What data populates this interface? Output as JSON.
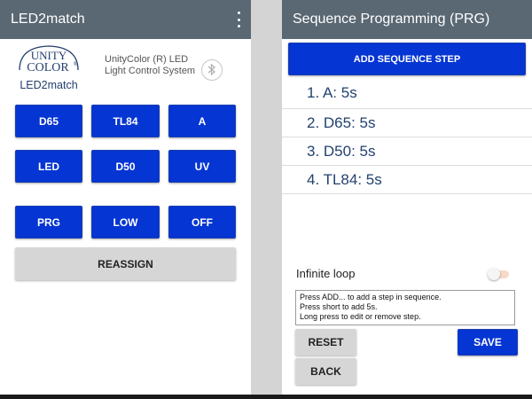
{
  "left_app": {
    "title": "LED2match",
    "logo": {
      "line1": "UNITY",
      "line2": "COLOR",
      "reg": "®",
      "line3": "LED2match"
    },
    "subtitle": "UnityColor (R) LED Light Control System",
    "buttons": [
      {
        "label": "D65"
      },
      {
        "label": "TL84"
      },
      {
        "label": "A"
      },
      {
        "label": "LED"
      },
      {
        "label": "D50"
      },
      {
        "label": "UV"
      },
      {
        "label": "PRG"
      },
      {
        "label": "LOW"
      },
      {
        "label": "OFF"
      }
    ],
    "reassign_label": "REASSIGN"
  },
  "right_app": {
    "title": "Sequence Programming (PRG)",
    "add_step_label": "ADD SEQUENCE STEP",
    "steps": [
      {
        "text": "1. A: 5s"
      },
      {
        "text": "2. D65: 5s"
      },
      {
        "text": "3. D50: 5s"
      },
      {
        "text": "4. TL84: 5s"
      }
    ],
    "infinite_loop_label": "Infinite loop",
    "infinite_loop_on": false,
    "help_lines": [
      "Press ADD... to add a step in sequence.",
      "Press short to add 5s.",
      "Long press to edit or remove step."
    ],
    "reset_label": "RESET",
    "save_label": "SAVE",
    "back_label": "BACK"
  },
  "colors": {
    "appbar": "#5a6873",
    "primary_button": "#0535d2",
    "secondary_button": "#d6d6d6",
    "step_text": "#22426e"
  },
  "icons": [
    "overflow-menu-icon",
    "bluetooth-icon"
  ]
}
